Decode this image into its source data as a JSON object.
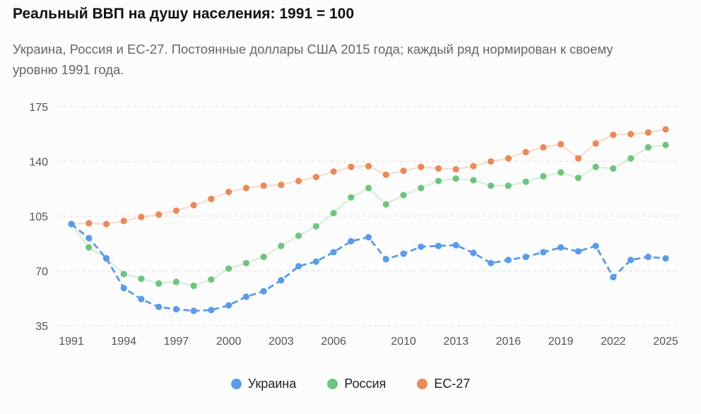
{
  "chart_data": {
    "type": "line",
    "title": "Реальный ВВП на душу населения: 1991 = 100",
    "subtitle": "Украина, Россия и ЕС-27. Постоянные доллары США 2015 года; каждый ряд нормирован к своему уровню 1991 года.",
    "xlabel": "",
    "ylabel": "",
    "ylim": [
      35,
      175
    ],
    "yticks": [
      35,
      70,
      105,
      140,
      175
    ],
    "xlim": [
      1991,
      2025
    ],
    "xticks": [
      1991,
      1994,
      1997,
      2000,
      2003,
      2006,
      2010,
      2013,
      2016,
      2019,
      2022,
      2025
    ],
    "grid": "horizontal dashed",
    "legend_position": "bottom-center",
    "x": [
      1991,
      1992,
      1993,
      1994,
      1995,
      1996,
      1997,
      1998,
      1999,
      2000,
      2001,
      2002,
      2003,
      2004,
      2005,
      2006,
      2007,
      2008,
      2009,
      2010,
      2011,
      2012,
      2013,
      2014,
      2015,
      2016,
      2017,
      2018,
      2019,
      2020,
      2021,
      2022,
      2023,
      2024,
      2025
    ],
    "series": [
      {
        "name": "Украина",
        "color": "#5b9be8",
        "line_style": "dashed",
        "values": [
          100,
          91,
          78,
          59,
          52,
          47,
          45.5,
          44.5,
          45,
          48,
          53.5,
          57,
          64,
          73,
          76,
          82,
          89,
          91.5,
          77.5,
          81,
          85.5,
          86,
          86.5,
          81.5,
          75,
          77,
          79,
          82,
          85,
          82.5,
          86,
          66,
          77,
          79,
          78
        ]
      },
      {
        "name": "Россия",
        "color": "#6ec47f",
        "line_style": "faded",
        "values": [
          100,
          85,
          78,
          68,
          65,
          62,
          63,
          60.5,
          64.5,
          71.5,
          75,
          79,
          86,
          92.5,
          98.5,
          107,
          117,
          123,
          112.5,
          118.5,
          123,
          127.5,
          129,
          128,
          124.5,
          124.5,
          127,
          130.5,
          133,
          129.5,
          136.5,
          135.5,
          142,
          149,
          150.5
        ]
      },
      {
        "name": "ЕС-27",
        "color": "#e88a5a",
        "line_style": "faded",
        "values": [
          100,
          100.5,
          100,
          102,
          104.5,
          106,
          108.5,
          112,
          116,
          120.5,
          123,
          124.5,
          125,
          127.5,
          130,
          133.5,
          136.5,
          137,
          131.5,
          134,
          136.5,
          135.5,
          135,
          137,
          140,
          142,
          146,
          149,
          151,
          142,
          151.5,
          157,
          157.5,
          158.5,
          160.5
        ]
      }
    ]
  }
}
